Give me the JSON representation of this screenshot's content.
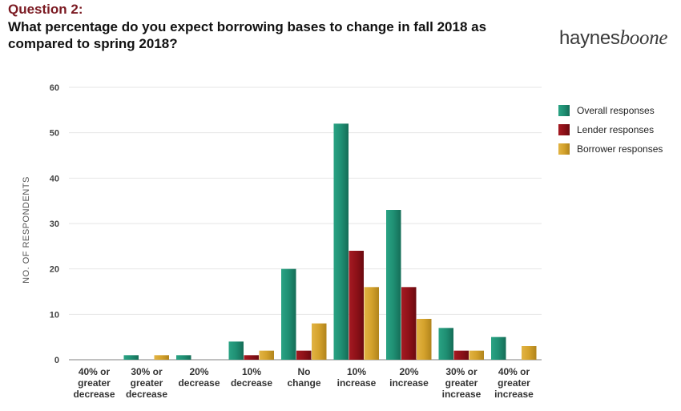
{
  "header": {
    "question_number": "Question 2:",
    "question_text": "What percentage do you expect borrowing bases to change in fall 2018 as compared to spring 2018?",
    "logo_regular": "haynes",
    "logo_italic": "boone"
  },
  "chart_data": {
    "type": "bar",
    "title": "What percentage do you expect borrowing bases to change in fall 2018 as compared to spring 2018?",
    "xlabel": "",
    "ylabel": "NO. OF RESPONDENTS",
    "ylim": [
      0,
      60
    ],
    "yticks": [
      0,
      10,
      20,
      30,
      40,
      50,
      60
    ],
    "grid": true,
    "legend_position": "right",
    "categories": [
      [
        "40% or",
        "greater",
        "decrease"
      ],
      [
        "30% or",
        "greater",
        "decrease"
      ],
      [
        "20%",
        "decrease"
      ],
      [
        "10%",
        "decrease"
      ],
      [
        "No",
        "change"
      ],
      [
        "10%",
        "increase"
      ],
      [
        "20%",
        "increase"
      ],
      [
        "30% or",
        "greater",
        "increase"
      ],
      [
        "40% or",
        "greater",
        "increase"
      ]
    ],
    "series": [
      {
        "name": "Overall responses",
        "color": "#1f8f73",
        "values": [
          0,
          1,
          1,
          4,
          20,
          52,
          33,
          7,
          5
        ]
      },
      {
        "name": "Lender responses",
        "color": "#8e1118",
        "values": [
          0,
          0,
          0,
          1,
          2,
          24,
          16,
          2,
          0
        ]
      },
      {
        "name": "Borrower responses",
        "color": "#d4a22c",
        "values": [
          0,
          1,
          0,
          2,
          8,
          16,
          9,
          2,
          3
        ]
      }
    ]
  }
}
